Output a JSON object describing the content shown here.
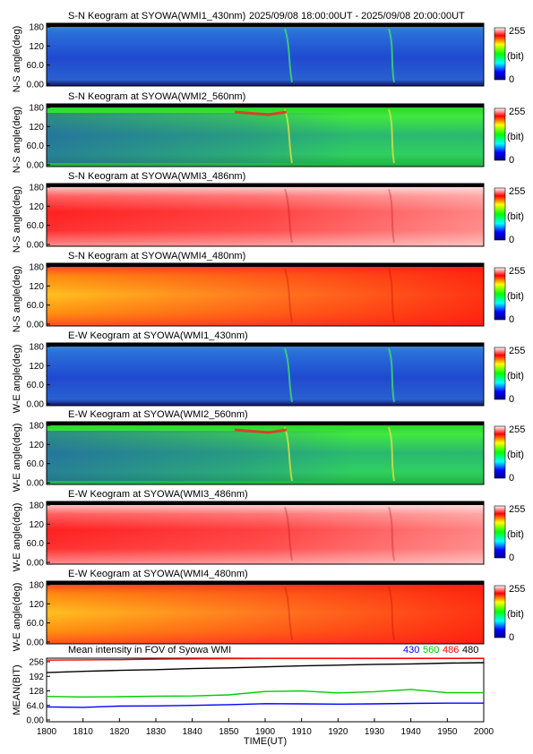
{
  "header": {
    "time_range": "2025/09/08 18:00:00UT - 2025/09/08 20:00:00UT"
  },
  "colors": {
    "line_430": "#0000ff",
    "line_560": "#00cc00",
    "line_486": "#ff0000",
    "line_480": "#000000"
  },
  "colorbar": {
    "max_label": "255",
    "unit_label": "(bit)",
    "min_label": "0"
  },
  "keograms": [
    {
      "title": "S-N Keogram at SYOWA(WMI1_430nm)",
      "ylabel": "N-S angle(deg)",
      "style": "blue",
      "yticks": [
        "180",
        "120",
        "60.0",
        "0.00"
      ]
    },
    {
      "title": "S-N Keogram at SYOWA(WMI2_560nm)",
      "ylabel": "N-S angle(deg)",
      "style": "green",
      "yticks": [
        "180",
        "120",
        "60.0",
        "0.00"
      ]
    },
    {
      "title": "S-N Keogram at SYOWA(WMI3_486nm)",
      "ylabel": "N-S angle(deg)",
      "style": "red",
      "yticks": [
        "180",
        "120",
        "60.0",
        "0.00"
      ]
    },
    {
      "title": "S-N Keogram at SYOWA(WMI4_480nm)",
      "ylabel": "N-S angle(deg)",
      "style": "yellow",
      "yticks": [
        "180",
        "120",
        "60.0",
        "0.00"
      ]
    },
    {
      "title": "E-W Keogram at SYOWA(WMI1_430nm)",
      "ylabel": "W-E angle(deg)",
      "style": "blue",
      "yticks": [
        "180",
        "120",
        "60.0",
        "0.00"
      ]
    },
    {
      "title": "E-W Keogram at SYOWA(WMI2_560nm)",
      "ylabel": "W-E angle(deg)",
      "style": "green",
      "yticks": [
        "180",
        "120",
        "60.0",
        "0.00"
      ]
    },
    {
      "title": "E-W Keogram at SYOWA(WMI3_486nm)",
      "ylabel": "W-E angle(deg)",
      "style": "red",
      "yticks": [
        "180",
        "120",
        "60.0",
        "0.00"
      ]
    },
    {
      "title": "E-W Keogram at SYOWA(WMI4_480nm)",
      "ylabel": "W-E angle(deg)",
      "style": "yellow",
      "yticks": [
        "180",
        "120",
        "60.0",
        "0.00"
      ]
    }
  ],
  "chart_data": {
    "type": "line",
    "title": "Mean intensity in FOV of Syowa WMI",
    "xlabel": "TIME(UT)",
    "ylabel": "MEAN(BIT)",
    "x": [
      "1800",
      "1810",
      "1820",
      "1830",
      "1840",
      "1850",
      "1900",
      "1910",
      "1920",
      "1930",
      "1940",
      "1950",
      "2000"
    ],
    "x_minutes": [
      0,
      10,
      20,
      30,
      40,
      50,
      60,
      70,
      80,
      90,
      100,
      110,
      120
    ],
    "ylim": [
      0,
      256
    ],
    "yticks": [
      "256",
      "192",
      "128",
      "64.0",
      "0.00"
    ],
    "legend_position": "top-right",
    "series": [
      {
        "name": "430",
        "color": "#0000ff",
        "values": [
          60,
          58,
          63,
          64,
          66,
          69,
          73,
          72,
          71,
          72,
          74,
          75,
          75
        ]
      },
      {
        "name": "560",
        "color": "#00cc00",
        "values": [
          102,
          100,
          101,
          103,
          104,
          108,
          122,
          124,
          116,
          121,
          130,
          117,
          117
        ]
      },
      {
        "name": "486",
        "color": "#ff0000",
        "values": [
          248,
          249,
          250,
          252,
          253,
          254,
          255,
          255,
          255,
          255,
          255,
          255,
          255
        ]
      },
      {
        "name": "480",
        "color": "#000000",
        "values": [
          198,
          203,
          207,
          210,
          214,
          217,
          221,
          225,
          228,
          231,
          233,
          236,
          238
        ]
      }
    ]
  }
}
